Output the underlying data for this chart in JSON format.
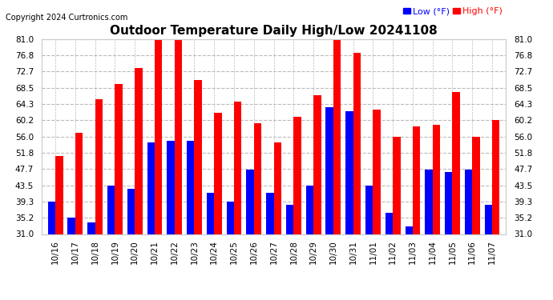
{
  "title": "Outdoor Temperature Daily High/Low 20241108",
  "copyright": "Copyright 2024 Curtronics.com",
  "dates": [
    "10/16",
    "10/17",
    "10/18",
    "10/19",
    "10/20",
    "10/21",
    "10/22",
    "10/23",
    "10/24",
    "10/25",
    "10/26",
    "10/27",
    "10/28",
    "10/29",
    "10/30",
    "10/31",
    "11/01",
    "11/02",
    "11/03",
    "11/04",
    "11/05",
    "11/06",
    "11/07"
  ],
  "highs": [
    51.0,
    57.0,
    65.5,
    69.5,
    73.5,
    81.0,
    81.0,
    70.5,
    62.0,
    65.0,
    59.5,
    54.5,
    61.0,
    66.5,
    81.0,
    77.5,
    63.0,
    56.0,
    58.5,
    59.0,
    67.5,
    56.0,
    60.2
  ],
  "lows": [
    39.3,
    35.2,
    34.0,
    43.5,
    42.5,
    54.5,
    55.0,
    55.0,
    41.5,
    39.3,
    47.5,
    41.5,
    38.5,
    43.5,
    63.5,
    62.5,
    43.5,
    36.5,
    33.0,
    47.5,
    47.0,
    47.5,
    38.5
  ],
  "ylim": [
    31.0,
    81.0
  ],
  "yticks": [
    31.0,
    35.2,
    39.3,
    43.5,
    47.7,
    51.8,
    56.0,
    60.2,
    64.3,
    68.5,
    72.7,
    76.8,
    81.0
  ],
  "bar_width": 0.38,
  "high_color": "#ff0000",
  "low_color": "#0000ff",
  "background_color": "#ffffff",
  "grid_color": "#bbbbbb",
  "title_fontsize": 11,
  "copyright_fontsize": 7,
  "tick_fontsize": 7.5,
  "legend_fontsize": 8
}
